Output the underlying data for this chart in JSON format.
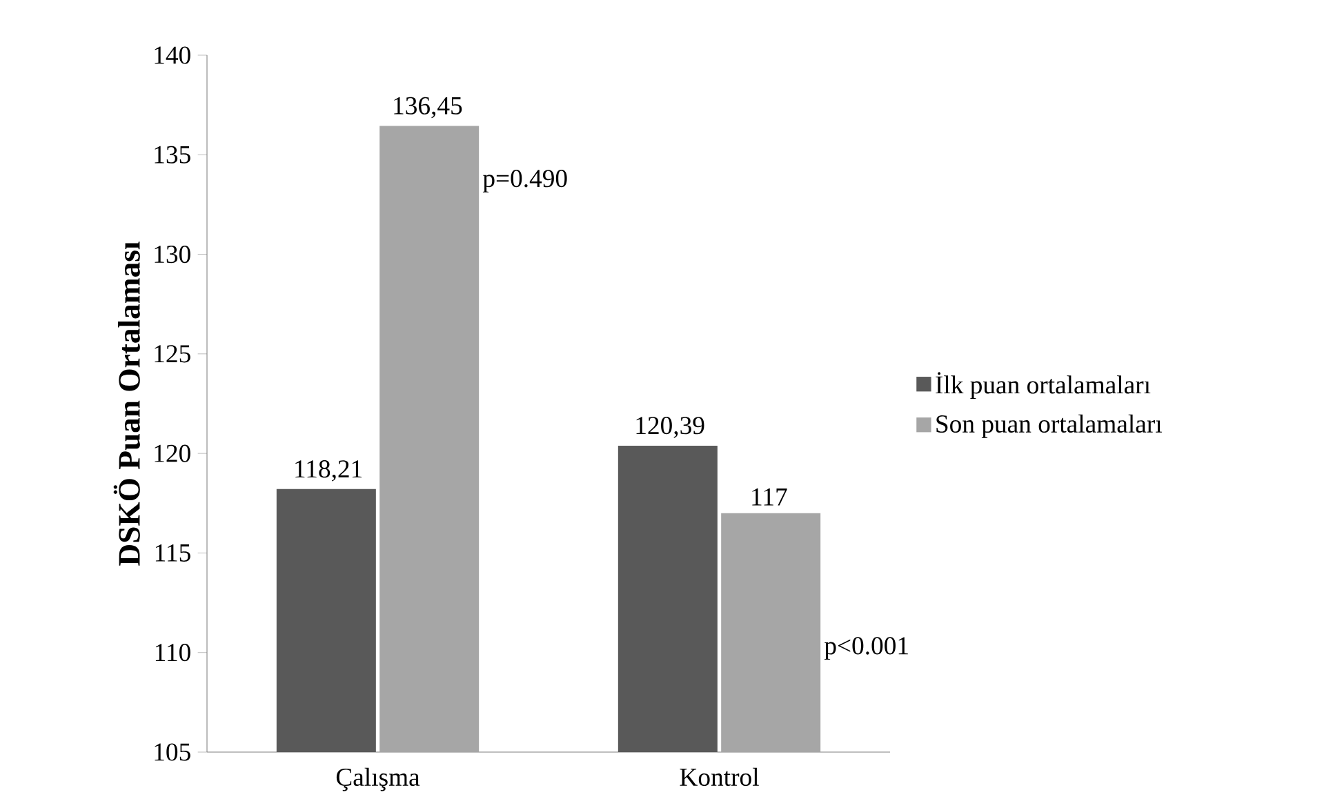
{
  "chart_data": {
    "type": "bar",
    "ylabel": "DSKÖ Puan Ortalaması",
    "categories": [
      "Çalışma",
      "Kontrol"
    ],
    "series": [
      {
        "name": "İlk puan ortalamaları",
        "color": "#595959",
        "values": [
          118.21,
          120.39
        ],
        "value_labels": [
          "118,21",
          "120,39"
        ]
      },
      {
        "name": "Son puan ortalamaları",
        "color": "#a6a6a6",
        "values": [
          136.45,
          117
        ],
        "value_labels": [
          "136,45",
          "117"
        ]
      }
    ],
    "ylim": [
      105,
      140
    ],
    "yticks": [
      105,
      110,
      115,
      120,
      125,
      130,
      135,
      140
    ],
    "annotations": [
      "p=0.490",
      "p<0.001"
    ],
    "legend": "right",
    "grid": false
  }
}
